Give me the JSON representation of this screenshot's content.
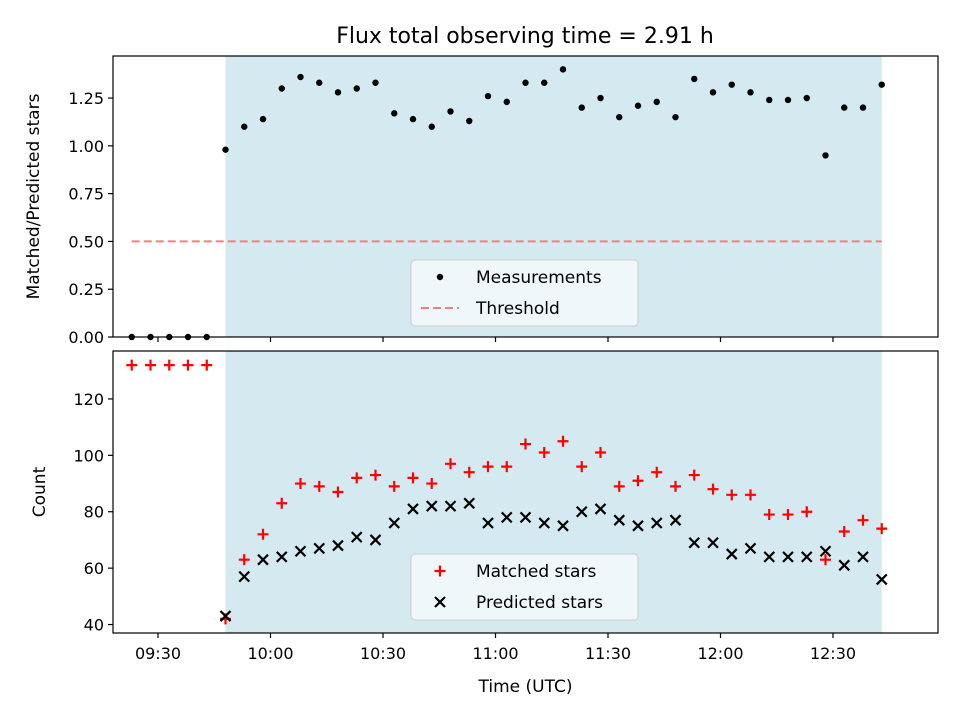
{
  "title": "Flux total observing time = 2.91 h",
  "chart_data": [
    {
      "type": "scatter",
      "ylabel": "Matched/Predicted stars",
      "xlabel": "",
      "xlim": [
        "09:18",
        "12:58"
      ],
      "ylim": [
        0,
        1.47
      ],
      "y_ticks": [
        0.0,
        0.25,
        0.5,
        0.75,
        1.0,
        1.25
      ],
      "y_tick_labels": [
        "0.00",
        "0.25",
        "0.50",
        "0.75",
        "1.00",
        "1.25"
      ],
      "grid": false,
      "legend": "lower-center",
      "shaded_interval": [
        "09:48",
        "12:43"
      ],
      "shade_color": "#d4eaf0",
      "series": [
        {
          "name": "Measurements",
          "marker": "dot",
          "color": "#000000",
          "x": [
            "09:23",
            "09:28",
            "09:33",
            "09:38",
            "09:43",
            "09:48",
            "09:53",
            "09:58",
            "10:03",
            "10:08",
            "10:13",
            "10:18",
            "10:23",
            "10:28",
            "10:33",
            "10:38",
            "10:43",
            "10:48",
            "10:53",
            "10:58",
            "11:03",
            "11:08",
            "11:13",
            "11:18",
            "11:23",
            "11:28",
            "11:33",
            "11:38",
            "11:43",
            "11:48",
            "11:53",
            "11:58",
            "12:03",
            "12:08",
            "12:13",
            "12:18",
            "12:23",
            "12:28",
            "12:33",
            "12:38",
            "12:43"
          ],
          "y": [
            0.0,
            0.0,
            0.0,
            0.0,
            0.0,
            0.98,
            1.1,
            1.14,
            1.3,
            1.36,
            1.33,
            1.28,
            1.3,
            1.33,
            1.17,
            1.14,
            1.1,
            1.18,
            1.13,
            1.26,
            1.23,
            1.33,
            1.33,
            1.4,
            1.2,
            1.25,
            1.15,
            1.21,
            1.23,
            1.15,
            1.35,
            1.28,
            1.32,
            1.28,
            1.24,
            1.24,
            1.25,
            0.95,
            1.2,
            1.2,
            1.32
          ]
        },
        {
          "name": "Threshold",
          "marker": "dashed-line",
          "color": "#f08080",
          "x": [
            "09:23",
            "12:43"
          ],
          "y": [
            0.5,
            0.5
          ]
        }
      ]
    },
    {
      "type": "scatter",
      "ylabel": "Count",
      "xlabel": "Time (UTC)",
      "xlim": [
        "09:18",
        "12:58"
      ],
      "ylim": [
        37,
        137
      ],
      "y_ticks": [
        40,
        60,
        80,
        100,
        120
      ],
      "y_tick_labels": [
        "40",
        "60",
        "80",
        "100",
        "120"
      ],
      "x_ticks": [
        "09:30",
        "10:00",
        "10:30",
        "11:00",
        "11:30",
        "12:00",
        "12:30"
      ],
      "x_tick_labels": [
        "09:30",
        "10:00",
        "10:30",
        "11:00",
        "11:30",
        "12:00",
        "12:30"
      ],
      "grid": false,
      "legend": "lower-center",
      "shaded_interval": [
        "09:48",
        "12:43"
      ],
      "shade_color": "#d4eaf0",
      "series": [
        {
          "name": "Matched stars",
          "marker": "plus",
          "color": "#ff0000",
          "x": [
            "09:23",
            "09:28",
            "09:33",
            "09:38",
            "09:43",
            "09:48",
            "09:53",
            "09:58",
            "10:03",
            "10:08",
            "10:13",
            "10:18",
            "10:23",
            "10:28",
            "10:33",
            "10:38",
            "10:43",
            "10:48",
            "10:53",
            "10:58",
            "11:03",
            "11:08",
            "11:13",
            "11:18",
            "11:23",
            "11:28",
            "11:33",
            "11:38",
            "11:43",
            "11:48",
            "11:53",
            "11:58",
            "12:03",
            "12:08",
            "12:13",
            "12:18",
            "12:23",
            "12:28",
            "12:33",
            "12:38",
            "12:43"
          ],
          "y": [
            132,
            132,
            132,
            132,
            132,
            42,
            63,
            72,
            83,
            90,
            89,
            87,
            92,
            93,
            89,
            92,
            90,
            97,
            94,
            96,
            96,
            104,
            101,
            105,
            96,
            101,
            89,
            91,
            94,
            89,
            93,
            88,
            86,
            86,
            79,
            79,
            80,
            63,
            73,
            77,
            74
          ]
        },
        {
          "name": "Predicted stars",
          "marker": "x",
          "color": "#000000",
          "x": [
            "09:48",
            "09:53",
            "09:58",
            "10:03",
            "10:08",
            "10:13",
            "10:18",
            "10:23",
            "10:28",
            "10:33",
            "10:38",
            "10:43",
            "10:48",
            "10:53",
            "10:58",
            "11:03",
            "11:08",
            "11:13",
            "11:18",
            "11:23",
            "11:28",
            "11:33",
            "11:38",
            "11:43",
            "11:48",
            "11:53",
            "11:58",
            "12:03",
            "12:08",
            "12:13",
            "12:18",
            "12:23",
            "12:28",
            "12:33",
            "12:38",
            "12:43"
          ],
          "y": [
            43,
            57,
            63,
            64,
            66,
            67,
            68,
            71,
            70,
            76,
            81,
            82,
            82,
            83,
            76,
            78,
            78,
            76,
            75,
            80,
            81,
            77,
            75,
            76,
            77,
            69,
            69,
            65,
            67,
            64,
            64,
            64,
            66,
            61,
            64,
            56
          ]
        }
      ]
    }
  ]
}
